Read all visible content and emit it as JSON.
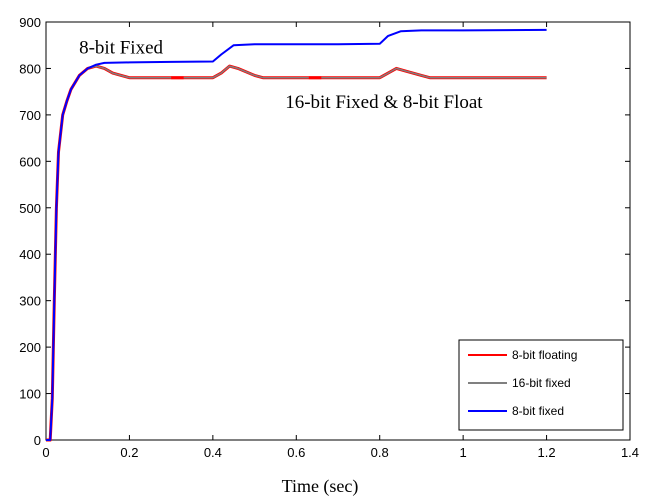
{
  "chart_data": {
    "type": "line",
    "title": "",
    "xlabel": "Time (sec)",
    "ylabel": "",
    "xlim": [
      0,
      1.4
    ],
    "ylim": [
      0,
      900
    ],
    "grid": false,
    "legend_position": "bottom-right",
    "x_ticks": [
      0,
      0.2,
      0.4,
      0.6,
      0.8,
      1,
      1.2,
      1.4
    ],
    "x_tick_labels": [
      "0",
      "0.2",
      "0.4",
      "0.6",
      "0.8",
      "1",
      "1.2",
      "1.4"
    ],
    "y_ticks": [
      0,
      100,
      200,
      300,
      400,
      500,
      600,
      700,
      800,
      900
    ],
    "y_tick_labels": [
      "0",
      "100",
      "200",
      "300",
      "400",
      "500",
      "600",
      "700",
      "800",
      "900"
    ],
    "annotations": [
      {
        "text": "8-bit Fixed",
        "x": 0.18,
        "y": 832
      },
      {
        "text": "16-bit Fixed & 8-bit Float",
        "x": 0.81,
        "y": 715
      }
    ],
    "series": [
      {
        "name": "8-bit floating",
        "color": "#ff0000",
        "x": [
          0,
          0.01,
          0.015,
          0.02,
          0.025,
          0.03,
          0.04,
          0.05,
          0.06,
          0.08,
          0.1,
          0.12,
          0.14,
          0.16,
          0.2,
          0.3,
          0.4,
          0.42,
          0.44,
          0.46,
          0.5,
          0.52,
          0.6,
          0.7,
          0.8,
          0.82,
          0.84,
          0.86,
          0.9,
          0.92,
          1.0,
          1.2
        ],
        "y": [
          0,
          0,
          90,
          300,
          500,
          620,
          700,
          730,
          755,
          785,
          800,
          805,
          800,
          790,
          780,
          780,
          780,
          790,
          805,
          800,
          785,
          780,
          780,
          780,
          780,
          790,
          800,
          795,
          785,
          780,
          780,
          780
        ]
      },
      {
        "name": "16-bit fixed",
        "color": "#808080",
        "x": [
          0,
          0.01,
          0.015,
          0.02,
          0.025,
          0.03,
          0.04,
          0.05,
          0.06,
          0.08,
          0.1,
          0.12,
          0.14,
          0.16,
          0.2,
          0.3,
          0.4,
          0.42,
          0.44,
          0.46,
          0.5,
          0.52,
          0.6,
          0.7,
          0.8,
          0.82,
          0.84,
          0.86,
          0.9,
          0.92,
          1.0,
          1.2
        ],
        "y": [
          0,
          0,
          90,
          300,
          500,
          620,
          700,
          730,
          755,
          785,
          800,
          805,
          800,
          790,
          780,
          780,
          780,
          790,
          805,
          800,
          785,
          780,
          780,
          780,
          780,
          790,
          800,
          795,
          785,
          780,
          780,
          780
        ]
      },
      {
        "name": "8-bit fixed",
        "color": "#0000ff",
        "x": [
          0,
          0.01,
          0.015,
          0.02,
          0.025,
          0.03,
          0.04,
          0.05,
          0.06,
          0.08,
          0.1,
          0.12,
          0.14,
          0.2,
          0.3,
          0.4,
          0.42,
          0.45,
          0.5,
          0.6,
          0.7,
          0.8,
          0.82,
          0.85,
          0.9,
          1.0,
          1.2
        ],
        "y": [
          0,
          0,
          90,
          300,
          500,
          620,
          700,
          730,
          755,
          785,
          800,
          808,
          812,
          813,
          814,
          815,
          830,
          850,
          852,
          852,
          852,
          853,
          870,
          880,
          882,
          882,
          883
        ]
      }
    ]
  }
}
